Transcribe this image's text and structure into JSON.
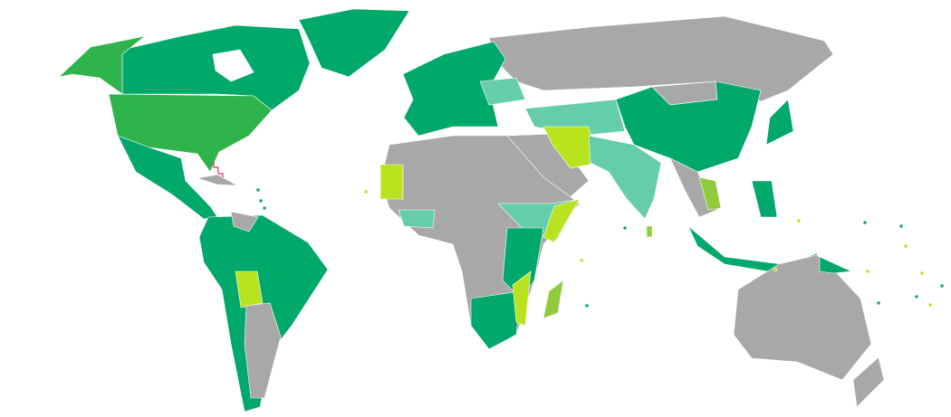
{
  "map": {
    "background": "#ffffff",
    "colors": {
      "dark_green": "#00a86b",
      "medium_green": "#2fb34b",
      "teal": "#66cdaa",
      "yellow_green": "#b9e31f",
      "olive_green": "#8fcb3c",
      "gray": "#a8a8a8",
      "marker_red": "#e8325a"
    }
  }
}
